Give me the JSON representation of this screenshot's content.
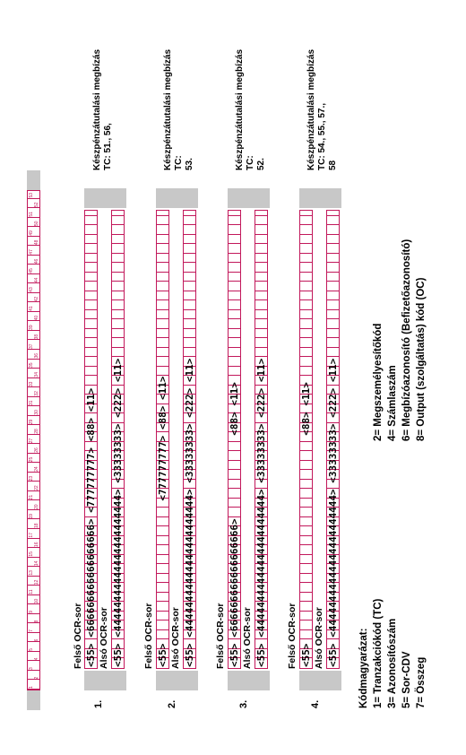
{
  "ruler_numbers": [
    "1",
    "2",
    "3",
    "4",
    "5",
    "6",
    "7",
    "8",
    "9",
    "10",
    "11",
    "12",
    "13",
    "14",
    "15",
    "16",
    "17",
    "18",
    "19",
    "20",
    "21",
    "22",
    "23",
    "24",
    "25",
    "26",
    "27",
    "28",
    "29",
    "30",
    "31",
    "32",
    "33",
    "34",
    "35",
    "36",
    "37",
    "38",
    "39",
    "40",
    "41",
    "42",
    "43",
    "44",
    "45",
    "46",
    "47",
    "48",
    "49",
    "50",
    "51",
    "52",
    "53"
  ],
  "labels": {
    "upper": "Felső OCR-sor",
    "lower": "Alsó OCR-sor"
  },
  "forms": [
    {
      "number": "1.",
      "upper_line": "<55> <666666666666666666> <777777777> <88> <11>",
      "lower_line": "<55> <44444444444444444444444> <33333333> <222> <11>",
      "desc": [
        "Készpénzátutalási megbízás",
        "TC: 51., 56,"
      ]
    },
    {
      "number": "2.",
      "upper_line": "<55>                        <777777777> <88> <11>",
      "lower_line": "<55> <44444444444444444444444> <33333333> <222> <11>",
      "desc": [
        "Készpénzátutalási megbízás",
        "TC:",
        "53."
      ]
    },
    {
      "number": "3.",
      "upper_line": "<55> <666666666666666666>              <88> <11>",
      "lower_line": "<55> <44444444444444444444444> <33333333> <222> <11>",
      "desc": [
        "Készpénzátutalási megbízás",
        "TC:",
        "52."
      ]
    },
    {
      "number": "4.",
      "upper_line": "<55>                                   <88> <11>",
      "lower_line": "<55> <44444444444444444444444> <33333333> <222> <11>",
      "desc": [
        "Készpénzátutalási megbízás",
        "TC: 54., 55., 57.,",
        "58"
      ]
    }
  ],
  "legend": {
    "title": "Kódmagyarázat:",
    "items": [
      "1= Tranzakciókód  (TC)",
      "2= Megszemélyesítőkód",
      "3= Azonosítószám",
      "4= Számlaszám",
      "5= Sor-CDV",
      "6= Megbízóazonosító (Befizetőazonosító)",
      "7= Összeg",
      "8= Output (szolgáltatás) kód  (OC)"
    ]
  }
}
